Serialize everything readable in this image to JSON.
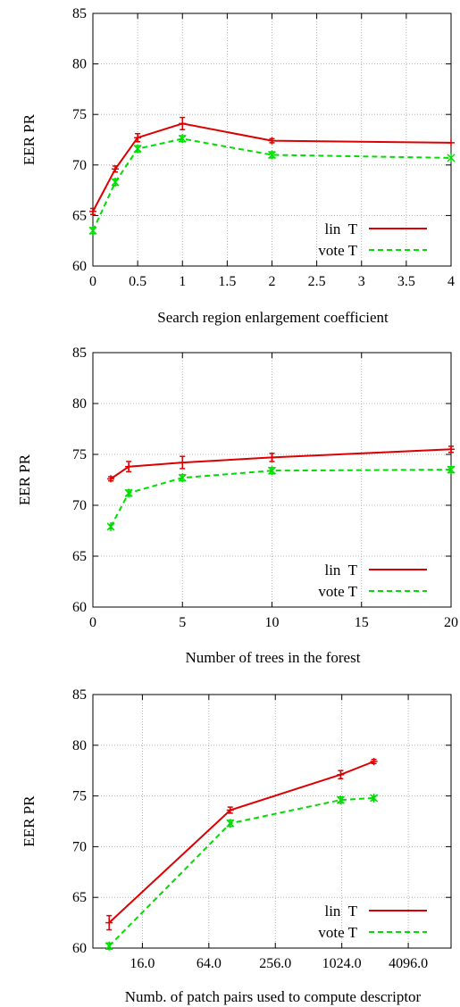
{
  "colors": {
    "lin": "#dd0000",
    "vote": "#00dd00"
  },
  "chart_data": [
    {
      "type": "line",
      "xscale": "linear",
      "xlabel": "Search region enlargement coefficient",
      "ylabel": "EER PR",
      "xlim": [
        0,
        4
      ],
      "ylim": [
        60,
        85
      ],
      "xticks": [
        0,
        0.5,
        1,
        1.5,
        2,
        2.5,
        3,
        3.5,
        4
      ],
      "xtick_labels": [
        "0",
        "0.5",
        "1",
        "1.5",
        "2",
        "2.5",
        "3",
        "3.5",
        "4"
      ],
      "yticks": [
        60,
        65,
        70,
        75,
        80,
        85
      ],
      "ytick_labels": [
        "60",
        "65",
        "70",
        "75",
        "80",
        "85"
      ],
      "grid": true,
      "legend": "bottom-right",
      "series": [
        {
          "name": "lin  T",
          "style": "solid",
          "x": [
            0,
            0.25,
            0.5,
            1,
            2,
            4
          ],
          "y": [
            65.4,
            69.6,
            72.7,
            74.1,
            72.4,
            72.2
          ],
          "err": [
            0.3,
            0.3,
            0.4,
            0.6,
            0.2,
            0.0
          ]
        },
        {
          "name": "vote T",
          "style": "dashed",
          "x": [
            0,
            0.25,
            0.5,
            1,
            2,
            4
          ],
          "y": [
            63.5,
            68.3,
            71.6,
            72.6,
            71.0,
            70.7
          ],
          "err": [
            0.3,
            0.3,
            0.3,
            0.3,
            0.3,
            0.0
          ]
        }
      ]
    },
    {
      "type": "line",
      "xscale": "linear",
      "xlabel": "Number of trees in the forest",
      "ylabel": "EER PR",
      "xlim": [
        0,
        20
      ],
      "ylim": [
        60,
        85
      ],
      "xticks": [
        0,
        5,
        10,
        15,
        20
      ],
      "xtick_labels": [
        "0",
        "5",
        "10",
        "15",
        "20"
      ],
      "yticks": [
        60,
        65,
        70,
        75,
        80,
        85
      ],
      "ytick_labels": [
        "60",
        "65",
        "70",
        "75",
        "80",
        "85"
      ],
      "grid": true,
      "legend": "bottom-right",
      "series": [
        {
          "name": "lin  T",
          "style": "solid",
          "x": [
            1,
            2,
            5,
            10,
            20
          ],
          "y": [
            72.6,
            73.8,
            74.2,
            74.7,
            75.5
          ],
          "err": [
            0.2,
            0.5,
            0.6,
            0.4,
            0.3
          ]
        },
        {
          "name": "vote T",
          "style": "dashed",
          "x": [
            1,
            2,
            5,
            10,
            20
          ],
          "y": [
            67.9,
            71.2,
            72.7,
            73.4,
            73.5
          ],
          "err": [
            0.2,
            0.3,
            0.3,
            0.3,
            0.3
          ]
        }
      ]
    },
    {
      "type": "line",
      "xscale": "log2",
      "xlabel": "Numb. of patch pairs used to compute descriptor",
      "ylabel": "EER PR",
      "xlim": [
        5.7,
        10000
      ],
      "ylim": [
        60,
        85
      ],
      "xticks": [
        16,
        64,
        256,
        1024,
        4096
      ],
      "xtick_labels": [
        "16.0",
        "64.0",
        "256.0",
        "1024.0",
        "4096.0"
      ],
      "yticks": [
        60,
        65,
        70,
        75,
        80,
        85
      ],
      "ytick_labels": [
        "60",
        "65",
        "70",
        "75",
        "80",
        "85"
      ],
      "grid": true,
      "legend": "bottom-right",
      "series": [
        {
          "name": "lin  T",
          "style": "solid",
          "x": [
            8,
            100,
            1000,
            2000
          ],
          "y": [
            62.5,
            73.6,
            77.1,
            78.4
          ],
          "err": [
            0.7,
            0.3,
            0.4,
            0.2
          ]
        },
        {
          "name": "vote T",
          "style": "dashed",
          "x": [
            8,
            100,
            1000,
            2000
          ],
          "y": [
            60.2,
            72.3,
            74.6,
            74.8
          ],
          "err": [
            0.3,
            0.3,
            0.3,
            0.2
          ]
        }
      ]
    }
  ]
}
